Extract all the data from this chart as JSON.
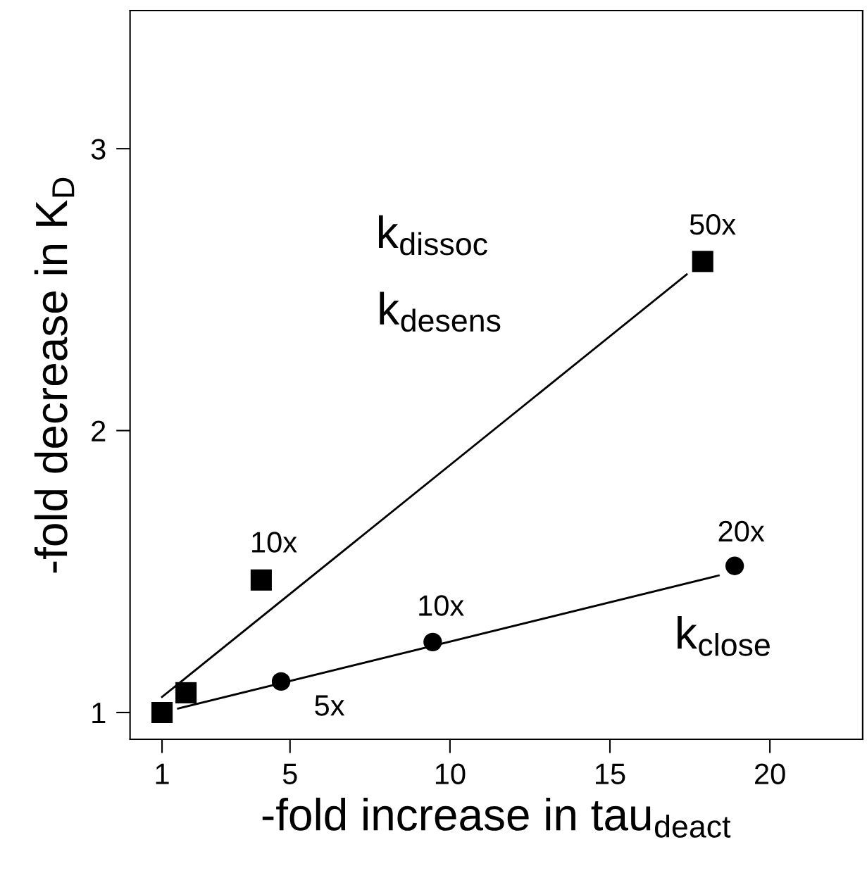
{
  "chart_data": {
    "type": "scatter",
    "xlabel": "-fold increase in tau$_{deact}$",
    "ylabel": "-fold decrease in K$_{D}$",
    "xlim": [
      0,
      22.9
    ],
    "ylim": [
      0.905,
      3.49
    ],
    "xticks": [
      1,
      5,
      10,
      15,
      20
    ],
    "yticks": [
      1,
      2,
      3
    ],
    "grid": false,
    "legend": false,
    "series": [
      {
        "marker": "square",
        "color": "#000000",
        "x": [
          1,
          1.75,
          4.1,
          17.9
        ],
        "values": [
          1,
          1.07,
          1.47,
          2.6
        ]
      },
      {
        "marker": "circle",
        "color": "#000000",
        "x": [
          4.72,
          9.46,
          18.9
        ],
        "values": [
          1.11,
          1.25,
          1.52
        ]
      },
      {
        "type": "line",
        "marker": "none",
        "color": "#000000",
        "x": [
          1,
          17.4
        ],
        "values": [
          1.055,
          2.554
        ]
      },
      {
        "type": "line",
        "marker": "none",
        "color": "#000000",
        "x": [
          1.5,
          18.4
        ],
        "values": [
          1.014,
          1.486
        ]
      }
    ],
    "annotations": [
      "50x",
      "10x",
      "20x",
      "10x",
      "5x",
      "k$_{dissoc}$",
      "k$_{desens}$",
      "k$_{close}$"
    ]
  }
}
